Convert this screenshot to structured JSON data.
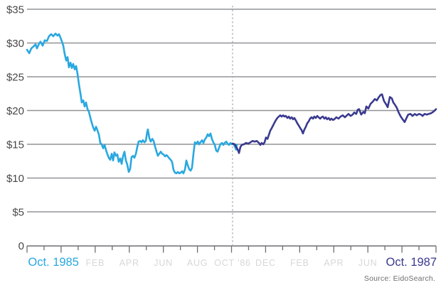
{
  "source_note": "Source: EidoSearch.",
  "chart_data": {
    "type": "line",
    "title": "",
    "currency": "USD",
    "x_axis": {
      "unit": "months",
      "start_label": "Oct. 1985",
      "end_label": "Oct. 1987",
      "range": [
        0,
        24
      ],
      "minor_tick_every": 1,
      "major_tick_every": 2,
      "labels": [
        {
          "text": "Oct. 1985",
          "month": 1.55,
          "emphasis": true,
          "color": "#29a8e0"
        },
        {
          "text": "FEB",
          "month": 4,
          "emphasis": false,
          "color": "#d6d7d9"
        },
        {
          "text": "APR",
          "month": 6,
          "emphasis": false,
          "color": "#d6d7d9"
        },
        {
          "text": "JUN",
          "month": 8,
          "emphasis": false,
          "color": "#d6d7d9"
        },
        {
          "text": "AUG",
          "month": 10,
          "emphasis": false,
          "color": "#d6d7d9"
        },
        {
          "text": "OCT '86",
          "month": 12.06,
          "emphasis": false,
          "color": "#d6d7d9"
        },
        {
          "text": "DEC",
          "month": 14,
          "emphasis": false,
          "color": "#d6d7d9"
        },
        {
          "text": "FEB",
          "month": 16,
          "emphasis": false,
          "color": "#d6d7d9"
        },
        {
          "text": "APR",
          "month": 18,
          "emphasis": false,
          "color": "#d6d7d9"
        },
        {
          "text": "JUN",
          "month": 20,
          "emphasis": false,
          "color": "#d6d7d9"
        },
        {
          "text": "Oct. 1987",
          "month": 22.55,
          "emphasis": true,
          "color": "#3b3a8f"
        }
      ]
    },
    "y_axis": {
      "min": 0,
      "max": 35,
      "tick_step": 5,
      "grid": true,
      "labels": [
        {
          "value": 35,
          "label": "$35"
        },
        {
          "value": 30,
          "label": "$30"
        },
        {
          "value": 25,
          "label": "$25"
        },
        {
          "value": 20,
          "label": "$20"
        },
        {
          "value": 15,
          "label": "$15"
        },
        {
          "value": 10,
          "label": "$10"
        },
        {
          "value": 5,
          "label": "$5"
        },
        {
          "value": 0,
          "label": "0"
        }
      ]
    },
    "divider": {
      "month": 12.06,
      "style": "dashed",
      "color": "#a7a9ac"
    },
    "series": [
      {
        "name": "historical",
        "color": "#29a8e0",
        "points": [
          [
            0.0,
            29.0
          ],
          [
            0.13,
            28.5
          ],
          [
            0.25,
            29.2
          ],
          [
            0.38,
            29.5
          ],
          [
            0.5,
            29.8
          ],
          [
            0.58,
            29.2
          ],
          [
            0.71,
            29.9
          ],
          [
            0.79,
            30.2
          ],
          [
            0.92,
            29.6
          ],
          [
            1.04,
            30.4
          ],
          [
            1.17,
            30.3
          ],
          [
            1.29,
            31.0
          ],
          [
            1.42,
            31.3
          ],
          [
            1.54,
            31.0
          ],
          [
            1.67,
            31.4
          ],
          [
            1.79,
            31.1
          ],
          [
            1.88,
            31.3
          ],
          [
            1.96,
            30.8
          ],
          [
            2.05,
            30.2
          ],
          [
            2.13,
            29.6
          ],
          [
            2.21,
            28.4
          ],
          [
            2.3,
            27.4
          ],
          [
            2.38,
            27.9
          ],
          [
            2.46,
            26.4
          ],
          [
            2.55,
            27.1
          ],
          [
            2.63,
            26.3
          ],
          [
            2.71,
            26.9
          ],
          [
            2.8,
            26.1
          ],
          [
            2.88,
            26.6
          ],
          [
            2.96,
            25.5
          ],
          [
            3.05,
            23.8
          ],
          [
            3.13,
            22.6
          ],
          [
            3.21,
            21.2
          ],
          [
            3.3,
            21.5
          ],
          [
            3.38,
            20.6
          ],
          [
            3.46,
            21.2
          ],
          [
            3.55,
            20.2
          ],
          [
            3.63,
            19.8
          ],
          [
            3.76,
            18.5
          ],
          [
            3.88,
            17.5
          ],
          [
            3.97,
            17.0
          ],
          [
            4.05,
            17.6
          ],
          [
            4.13,
            17.1
          ],
          [
            4.22,
            16.4
          ],
          [
            4.3,
            15.2
          ],
          [
            4.38,
            15.0
          ],
          [
            4.47,
            14.4
          ],
          [
            4.55,
            14.9
          ],
          [
            4.63,
            14.2
          ],
          [
            4.72,
            13.5
          ],
          [
            4.8,
            13.0
          ],
          [
            4.88,
            12.7
          ],
          [
            4.97,
            13.6
          ],
          [
            5.05,
            12.6
          ],
          [
            5.13,
            13.8
          ],
          [
            5.22,
            13.3
          ],
          [
            5.3,
            13.5
          ],
          [
            5.38,
            12.4
          ],
          [
            5.47,
            12.9
          ],
          [
            5.55,
            12.1
          ],
          [
            5.63,
            13.2
          ],
          [
            5.72,
            13.9
          ],
          [
            5.8,
            12.6
          ],
          [
            5.88,
            12.0
          ],
          [
            5.97,
            10.9
          ],
          [
            6.05,
            11.3
          ],
          [
            6.13,
            13.1
          ],
          [
            6.22,
            13.3
          ],
          [
            6.3,
            13.0
          ],
          [
            6.39,
            13.6
          ],
          [
            6.47,
            14.6
          ],
          [
            6.55,
            15.4
          ],
          [
            6.64,
            15.5
          ],
          [
            6.72,
            15.3
          ],
          [
            6.8,
            15.6
          ],
          [
            6.89,
            15.3
          ],
          [
            6.97,
            15.5
          ],
          [
            7.05,
            16.8
          ],
          [
            7.09,
            17.2
          ],
          [
            7.18,
            15.9
          ],
          [
            7.26,
            15.4
          ],
          [
            7.35,
            15.8
          ],
          [
            7.43,
            15.5
          ],
          [
            7.51,
            14.7
          ],
          [
            7.6,
            13.9
          ],
          [
            7.68,
            13.3
          ],
          [
            7.76,
            13.6
          ],
          [
            7.85,
            13.9
          ],
          [
            7.93,
            13.6
          ],
          [
            8.01,
            13.5
          ],
          [
            8.1,
            13.2
          ],
          [
            8.18,
            13.4
          ],
          [
            8.26,
            13.2
          ],
          [
            8.35,
            12.9
          ],
          [
            8.43,
            12.7
          ],
          [
            8.51,
            12.4
          ],
          [
            8.6,
            11.2
          ],
          [
            8.68,
            10.8
          ],
          [
            8.76,
            10.7
          ],
          [
            8.85,
            10.9
          ],
          [
            8.93,
            10.7
          ],
          [
            9.01,
            10.8
          ],
          [
            9.1,
            11.0
          ],
          [
            9.18,
            10.7
          ],
          [
            9.27,
            11.3
          ],
          [
            9.35,
            12.6
          ],
          [
            9.43,
            11.9
          ],
          [
            9.52,
            11.3
          ],
          [
            9.6,
            11.1
          ],
          [
            9.68,
            11.5
          ],
          [
            9.77,
            13.7
          ],
          [
            9.85,
            15.3
          ],
          [
            9.93,
            15.1
          ],
          [
            10.02,
            15.4
          ],
          [
            10.1,
            15.0
          ],
          [
            10.18,
            15.3
          ],
          [
            10.27,
            15.6
          ],
          [
            10.35,
            15.2
          ],
          [
            10.43,
            15.7
          ],
          [
            10.52,
            16.0
          ],
          [
            10.6,
            16.5
          ],
          [
            10.68,
            16.2
          ],
          [
            10.77,
            16.6
          ],
          [
            10.85,
            15.8
          ],
          [
            10.93,
            15.3
          ],
          [
            11.02,
            14.9
          ],
          [
            11.1,
            14.1
          ],
          [
            11.18,
            13.9
          ],
          [
            11.27,
            14.5
          ],
          [
            11.35,
            15.0
          ],
          [
            11.44,
            15.2
          ],
          [
            11.52,
            14.9
          ],
          [
            11.6,
            15.2
          ],
          [
            11.69,
            15.4
          ],
          [
            11.77,
            15.1
          ],
          [
            11.85,
            14.9
          ],
          [
            11.94,
            15.2
          ],
          [
            12.02,
            15.0
          ],
          [
            12.1,
            15.1
          ],
          [
            12.19,
            14.7
          ],
          [
            12.27,
            14.2
          ],
          [
            12.31,
            14.9
          ]
        ]
      },
      {
        "name": "projected",
        "color": "#3b3a8f",
        "points": [
          [
            12.06,
            15.1
          ],
          [
            12.19,
            15.0
          ],
          [
            12.27,
            14.6
          ],
          [
            12.35,
            14.3
          ],
          [
            12.44,
            13.7
          ],
          [
            12.52,
            14.6
          ],
          [
            12.6,
            14.9
          ],
          [
            12.73,
            15.0
          ],
          [
            12.85,
            15.2
          ],
          [
            12.98,
            15.1
          ],
          [
            13.11,
            15.3
          ],
          [
            13.23,
            15.5
          ],
          [
            13.36,
            15.4
          ],
          [
            13.48,
            15.5
          ],
          [
            13.61,
            15.2
          ],
          [
            13.69,
            14.9
          ],
          [
            13.77,
            15.2
          ],
          [
            13.86,
            15.0
          ],
          [
            13.94,
            15.3
          ],
          [
            14.02,
            16.0
          ],
          [
            14.11,
            15.8
          ],
          [
            14.19,
            16.4
          ],
          [
            14.27,
            17.0
          ],
          [
            14.36,
            17.4
          ],
          [
            14.44,
            17.8
          ],
          [
            14.52,
            18.2
          ],
          [
            14.61,
            18.6
          ],
          [
            14.69,
            18.9
          ],
          [
            14.77,
            19.1
          ],
          [
            14.86,
            19.3
          ],
          [
            14.94,
            19.1
          ],
          [
            15.03,
            19.3
          ],
          [
            15.11,
            19.1
          ],
          [
            15.19,
            19.2
          ],
          [
            15.28,
            18.9
          ],
          [
            15.36,
            19.1
          ],
          [
            15.44,
            18.8
          ],
          [
            15.53,
            19.0
          ],
          [
            15.61,
            18.7
          ],
          [
            15.69,
            18.9
          ],
          [
            15.78,
            18.5
          ],
          [
            15.86,
            18.1
          ],
          [
            15.94,
            17.8
          ],
          [
            16.03,
            17.4
          ],
          [
            16.11,
            17.1
          ],
          [
            16.19,
            16.6
          ],
          [
            16.28,
            17.2
          ],
          [
            16.36,
            17.6
          ],
          [
            16.44,
            18.1
          ],
          [
            16.53,
            18.4
          ],
          [
            16.61,
            18.8
          ],
          [
            16.69,
            19.0
          ],
          [
            16.78,
            18.8
          ],
          [
            16.86,
            19.1
          ],
          [
            16.94,
            18.9
          ],
          [
            17.03,
            19.2
          ],
          [
            17.11,
            19.0
          ],
          [
            17.2,
            18.8
          ],
          [
            17.28,
            19.0
          ],
          [
            17.36,
            19.1
          ],
          [
            17.45,
            18.8
          ],
          [
            17.53,
            19.0
          ],
          [
            17.61,
            18.7
          ],
          [
            17.7,
            18.9
          ],
          [
            17.78,
            18.6
          ],
          [
            17.86,
            18.8
          ],
          [
            17.95,
            18.6
          ],
          [
            18.03,
            18.7
          ],
          [
            18.15,
            19.0
          ],
          [
            18.28,
            18.8
          ],
          [
            18.4,
            19.1
          ],
          [
            18.53,
            19.3
          ],
          [
            18.65,
            19.0
          ],
          [
            18.78,
            19.3
          ],
          [
            18.86,
            19.5
          ],
          [
            18.99,
            19.2
          ],
          [
            19.11,
            19.4
          ],
          [
            19.2,
            19.7
          ],
          [
            19.32,
            19.5
          ],
          [
            19.4,
            20.1
          ],
          [
            19.49,
            20.2
          ],
          [
            19.61,
            19.4
          ],
          [
            19.74,
            19.8
          ],
          [
            19.82,
            19.6
          ],
          [
            19.91,
            20.6
          ],
          [
            20.03,
            20.3
          ],
          [
            20.16,
            21.0
          ],
          [
            20.28,
            21.3
          ],
          [
            20.41,
            21.7
          ],
          [
            20.53,
            21.5
          ],
          [
            20.62,
            21.9
          ],
          [
            20.74,
            22.3
          ],
          [
            20.83,
            22.4
          ],
          [
            20.95,
            21.4
          ],
          [
            21.08,
            20.9
          ],
          [
            21.16,
            20.5
          ],
          [
            21.29,
            22.0
          ],
          [
            21.41,
            21.8
          ],
          [
            21.49,
            21.2
          ],
          [
            21.58,
            20.9
          ],
          [
            21.7,
            20.4
          ],
          [
            21.79,
            19.8
          ],
          [
            21.91,
            19.2
          ],
          [
            22.04,
            18.7
          ],
          [
            22.16,
            18.3
          ],
          [
            22.29,
            19.0
          ],
          [
            22.37,
            19.4
          ],
          [
            22.5,
            19.5
          ],
          [
            22.62,
            19.2
          ],
          [
            22.75,
            19.5
          ],
          [
            22.87,
            19.3
          ],
          [
            23.0,
            19.5
          ],
          [
            23.12,
            19.4
          ],
          [
            23.21,
            19.2
          ],
          [
            23.33,
            19.5
          ],
          [
            23.46,
            19.4
          ],
          [
            23.58,
            19.5
          ],
          [
            23.71,
            19.6
          ],
          [
            23.83,
            19.8
          ],
          [
            23.92,
            20.0
          ],
          [
            24.0,
            20.2
          ]
        ]
      }
    ],
    "source": "Source: EidoSearch."
  },
  "colors": {
    "grid": "#919396",
    "axis": "#6d6e71",
    "y_label": "#48484a",
    "minor_month_label": "#d6d7d9",
    "source_text": "#6d6e71",
    "historical_line": "#29a8e0",
    "projected_line": "#3b3a8f",
    "divider": "#a7a9ac"
  }
}
